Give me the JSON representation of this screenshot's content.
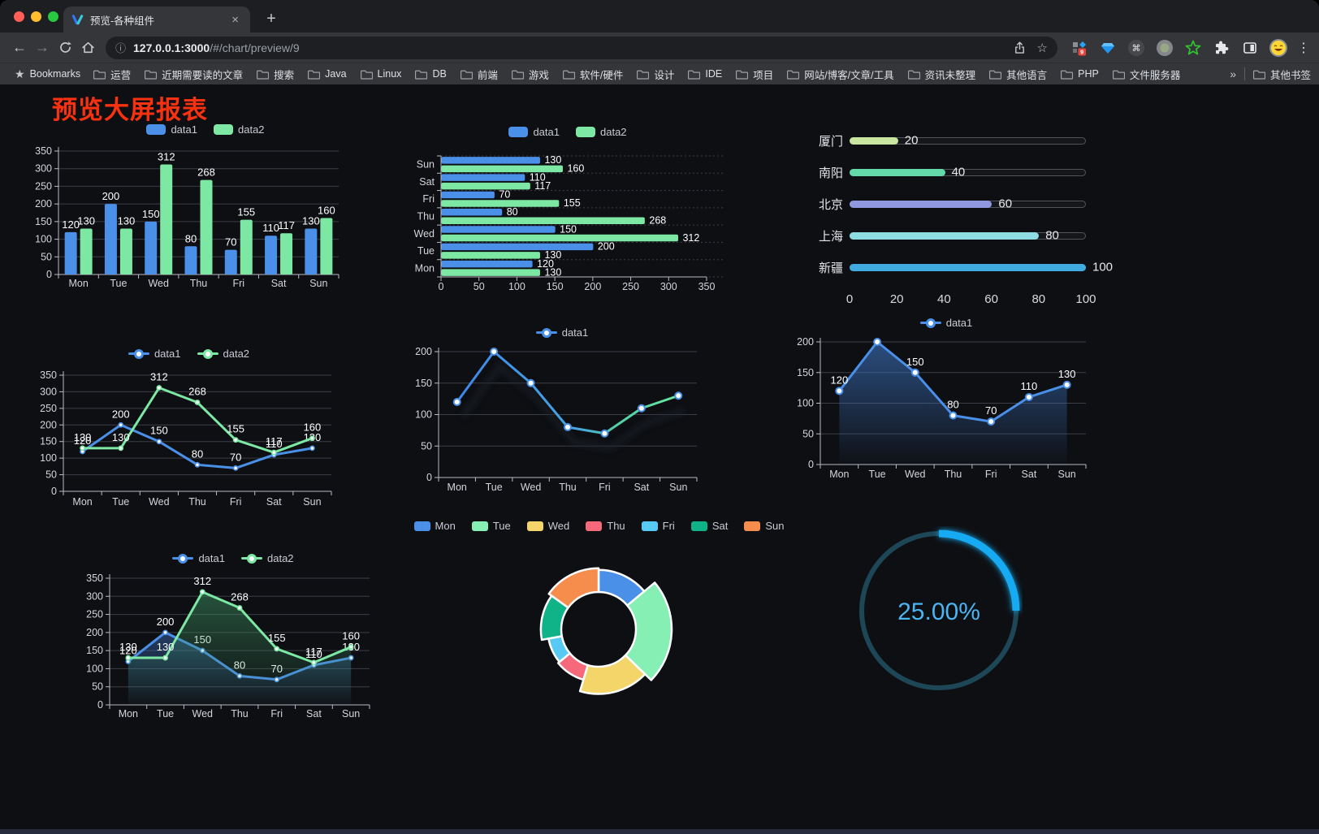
{
  "browser": {
    "tab_title": "预览-各种组件",
    "close_tab_label": "×",
    "new_tab_button": "+",
    "back": "←",
    "forward": "→",
    "url_host": "127.0.0.1:3000",
    "url_path": "/#/chart/preview/9",
    "info_icon": "ⓘ",
    "star_icon": "☆",
    "extension_badge": "9",
    "menu_dots": "⋮",
    "bookmarks_bar": {
      "star_label": "Bookmarks",
      "folders": [
        "运营",
        "近期需要读的文章",
        "搜索",
        "Java",
        "Linux",
        "DB",
        "前端",
        "游戏",
        "软件/硬件",
        "设计",
        "IDE",
        "项目",
        "网站/博客/文章/工具",
        "资讯未整理",
        "其他语言",
        "PHP",
        "文件服务器"
      ],
      "overflow_chevron": "»",
      "other_bookmarks": "其他书签"
    }
  },
  "page": {
    "title": "预览大屏报表"
  },
  "chart_data": [
    {
      "type": "bar",
      "categories": [
        "Mon",
        "Tue",
        "Wed",
        "Thu",
        "Fri",
        "Sat",
        "Sun"
      ],
      "series": [
        {
          "name": "data1",
          "color": "#4a90e8",
          "values": [
            120,
            200,
            150,
            80,
            70,
            110,
            130
          ]
        },
        {
          "name": "data2",
          "color": "#7ce8a4",
          "values": [
            130,
            130,
            312,
            268,
            155,
            117,
            160
          ]
        }
      ],
      "ylim": [
        0,
        350
      ],
      "ystep": 50,
      "legend_style": "rect",
      "labels": true
    },
    {
      "type": "hbar",
      "categories": [
        "Mon",
        "Tue",
        "Wed",
        "Thu",
        "Fri",
        "Sat",
        "Sun"
      ],
      "display_categories": [
        "Sun",
        "Sat",
        "Fri",
        "Thu",
        "Wed",
        "Tue",
        "Mon"
      ],
      "series": [
        {
          "name": "data1",
          "color": "#4a90e8",
          "values": [
            120,
            200,
            150,
            80,
            70,
            110,
            130
          ]
        },
        {
          "name": "data2",
          "color": "#7ce8a4",
          "values": [
            130,
            130,
            312,
            268,
            155,
            117,
            160
          ]
        }
      ],
      "xlim": [
        0,
        350
      ],
      "xstep": 50,
      "legend_style": "rect",
      "labels": true
    },
    {
      "type": "progress",
      "max": 100,
      "axis_ticks": [
        0,
        20,
        40,
        60,
        80,
        100
      ],
      "rows": [
        {
          "label": "厦门",
          "value": 20,
          "color": "#c9e6a0"
        },
        {
          "label": "南阳",
          "value": 40,
          "color": "#63d8a8"
        },
        {
          "label": "北京",
          "value": 60,
          "color": "#9099e0"
        },
        {
          "label": "上海",
          "value": 80,
          "color": "#8edde2"
        },
        {
          "label": "新疆",
          "value": 100,
          "color": "#3fabdf"
        }
      ]
    },
    {
      "type": "line",
      "categories": [
        "Mon",
        "Tue",
        "Wed",
        "Thu",
        "Fri",
        "Sat",
        "Sun"
      ],
      "series": [
        {
          "name": "data1",
          "color": "#4a90e8",
          "values": [
            120,
            200,
            150,
            80,
            70,
            110,
            130
          ]
        },
        {
          "name": "data2",
          "color": "#7ce8a4",
          "values": [
            130,
            130,
            312,
            268,
            155,
            117,
            160
          ]
        }
      ],
      "ylim": [
        0,
        350
      ],
      "ystep": 50,
      "legend_style": "line",
      "labels": true,
      "marker": "small"
    },
    {
      "type": "line",
      "categories": [
        "Mon",
        "Tue",
        "Wed",
        "Thu",
        "Fri",
        "Sat",
        "Sun"
      ],
      "series": [
        {
          "name": "data1",
          "color": "#4a90e8",
          "gradient": true,
          "values": [
            120,
            200,
            150,
            80,
            70,
            110,
            130
          ]
        }
      ],
      "gradient_stops": [
        [
          "0%",
          "#3f86e8"
        ],
        [
          "55%",
          "#46a6e0"
        ],
        [
          "72%",
          "#52d0a8"
        ],
        [
          "100%",
          "#68e89f"
        ]
      ],
      "ylim": [
        0,
        200
      ],
      "ystep": 50,
      "legend_style": "line",
      "labels": false,
      "marker": "big",
      "shadow": true
    },
    {
      "type": "line",
      "categories": [
        "Mon",
        "Tue",
        "Wed",
        "Thu",
        "Fri",
        "Sat",
        "Sun"
      ],
      "series": [
        {
          "name": "data1",
          "color": "#4a90e8",
          "values": [
            120,
            200,
            150,
            80,
            70,
            110,
            130
          ],
          "area": [
            "rgba(62,120,200,0.60)",
            "rgba(62,120,200,0.02)"
          ]
        }
      ],
      "ylim": [
        0,
        200
      ],
      "ystep": 50,
      "legend_style": "line",
      "labels": true,
      "marker": "big"
    },
    {
      "type": "line",
      "categories": [
        "Mon",
        "Tue",
        "Wed",
        "Thu",
        "Fri",
        "Sat",
        "Sun"
      ],
      "series": [
        {
          "name": "data1",
          "color": "#4a90e8",
          "values": [
            120,
            200,
            150,
            80,
            70,
            110,
            130
          ],
          "area": [
            "rgba(62,120,200,0.45)",
            "rgba(62,120,200,0.02)"
          ]
        },
        {
          "name": "data2",
          "color": "#7ce8a4",
          "values": [
            130,
            130,
            312,
            268,
            155,
            117,
            160
          ],
          "area": [
            "rgba(62,150,100,0.50)",
            "rgba(62,150,100,0.02)"
          ]
        }
      ],
      "ylim": [
        0,
        350
      ],
      "ystep": 50,
      "legend_style": "line",
      "labels": true,
      "marker": "small"
    },
    {
      "type": "pie",
      "rose": true,
      "categories": [
        "Mon",
        "Tue",
        "Wed",
        "Thu",
        "Fri",
        "Sat",
        "Sun"
      ],
      "values": [
        120,
        200,
        150,
        80,
        70,
        110,
        130
      ],
      "colors": [
        "#4a90e8",
        "#86efb4",
        "#f3d56a",
        "#f5697a",
        "#57c9f3",
        "#10b287",
        "#f68d4d"
      ],
      "legend_style": "rect-small"
    },
    {
      "type": "gauge",
      "value": 25,
      "label": "25.00%",
      "color": "#18aaf2",
      "track_color": "#1d4757",
      "text_color": "#4bb4f3"
    }
  ]
}
